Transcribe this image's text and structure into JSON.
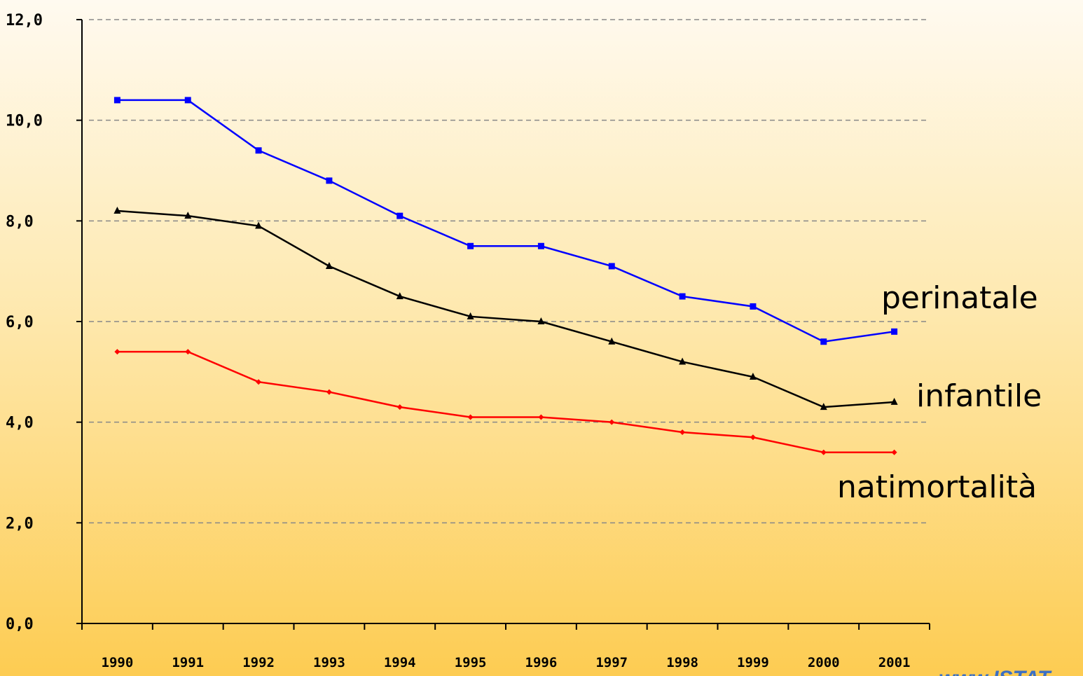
{
  "chart_data": {
    "type": "line",
    "categories": [
      "1990",
      "1991",
      "1992",
      "1993",
      "1994",
      "1995",
      "1996",
      "1997",
      "1998",
      "1999",
      "2000",
      "2001"
    ],
    "series": [
      {
        "name": "perinatale",
        "color": "#0000ff",
        "marker": "square",
        "values": [
          10.4,
          10.4,
          9.4,
          8.8,
          8.1,
          7.5,
          7.5,
          7.1,
          6.5,
          6.3,
          5.6,
          5.8
        ]
      },
      {
        "name": "infantile",
        "color": "#000000",
        "marker": "triangle",
        "values": [
          8.2,
          8.1,
          7.9,
          7.1,
          6.5,
          6.1,
          6.0,
          5.6,
          5.2,
          4.9,
          4.3,
          4.4
        ]
      },
      {
        "name": "natimortalità",
        "color": "#ff0000",
        "marker": "diamond",
        "values": [
          5.4,
          5.4,
          4.8,
          4.6,
          4.3,
          4.1,
          4.1,
          4.0,
          3.8,
          3.7,
          3.4,
          3.4
        ]
      }
    ],
    "ylim": [
      0,
      12
    ],
    "yticks": [
      {
        "value": 0,
        "label": "0,0"
      },
      {
        "value": 2,
        "label": "2,0"
      },
      {
        "value": 4,
        "label": "4,0"
      },
      {
        "value": 6,
        "label": "6,0"
      },
      {
        "value": 8,
        "label": "8,0"
      },
      {
        "value": 10,
        "label": "10,0"
      },
      {
        "value": 12,
        "label": "12,0"
      }
    ],
    "grid": true,
    "source": "www.ISTAT"
  }
}
